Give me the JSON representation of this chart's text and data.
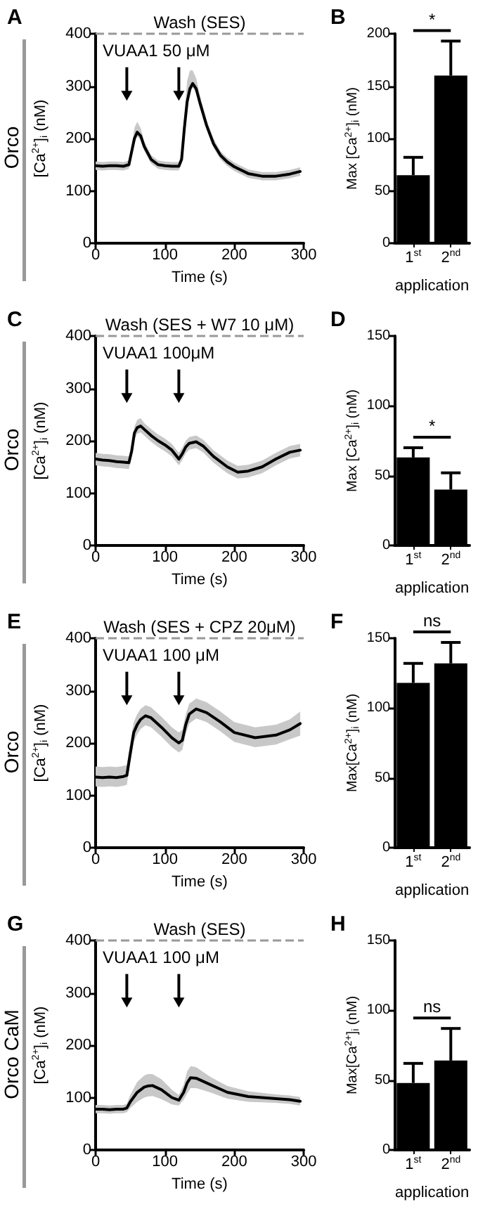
{
  "chart_data": [
    {
      "type": "line",
      "title": "A",
      "xlabel": "Time (s)",
      "ylabel": "[Ca$^{2+}$]$_{i}$ (nM)",
      "annotations": [
        "Orco",
        "VUAA1 50 μM"
      ],
      "marker": "none",
      "x": [
        0,
        10,
        20,
        30,
        40,
        48,
        52,
        56,
        60,
        65,
        70,
        80,
        90,
        100,
        110,
        120,
        124,
        128,
        132,
        136,
        140,
        145,
        150,
        160,
        170,
        180,
        190,
        200,
        220,
        240,
        260,
        280,
        295
      ],
      "series": [
        {
          "color": "#000000",
          "values": [
            148,
            147,
            148,
            148,
            147,
            150,
            175,
            200,
            212,
            205,
            185,
            160,
            150,
            148,
            147,
            147,
            160,
            220,
            270,
            295,
            305,
            295,
            270,
            225,
            190,
            168,
            155,
            146,
            133,
            128,
            128,
            132,
            137
          ],
          "upper": [
            156,
            155,
            156,
            156,
            155,
            158,
            185,
            220,
            232,
            220,
            195,
            168,
            158,
            156,
            155,
            155,
            170,
            245,
            310,
            330,
            330,
            315,
            285,
            235,
            200,
            176,
            163,
            154,
            141,
            136,
            136,
            140,
            145
          ],
          "lower": [
            140,
            139,
            140,
            140,
            139,
            142,
            167,
            192,
            204,
            197,
            177,
            152,
            142,
            140,
            139,
            139,
            152,
            212,
            262,
            287,
            297,
            287,
            262,
            217,
            182,
            160,
            147,
            138,
            125,
            120,
            120,
            124,
            129
          ]
        }
      ],
      "ref_lines": [
        {
          "axis": "y",
          "value": 400,
          "label": "Wash (SES)",
          "color": "#999999",
          "line_style": "dashed"
        },
        {
          "axis": "x",
          "value": 45,
          "label": null,
          "color": "#000000"
        },
        {
          "axis": "x",
          "value": 120,
          "label": null,
          "color": "#000000"
        }
      ],
      "xlim": [
        0,
        300
      ],
      "xticks": [
        0,
        100,
        200,
        300
      ],
      "ylim": [
        0,
        400
      ],
      "yticks": [
        0,
        100,
        200,
        300,
        400
      ]
    },
    {
      "type": "bar",
      "title": "B",
      "categories": [
        "1$^{st}$",
        "2$^{nd}$"
      ],
      "xlabel": "application",
      "ylabel": "Max [Ca$^{2+}$]$_{i}$ (nM)",
      "annotations": [
        "*"
      ],
      "values": [
        65,
        160
      ],
      "color": "#000000",
      "errors": [
        [
          65,
          82
        ],
        [
          160,
          193
        ]
      ],
      "ylim": [
        0,
        200
      ],
      "yticks": [
        0,
        50,
        100,
        150,
        200
      ]
    },
    {
      "type": "line",
      "title": "C",
      "xlabel": "Time (s)",
      "ylabel": "[Ca$^{2+}$]$_{i}$ (nM)",
      "annotations": [
        "Orco",
        "VUAA1 100μM"
      ],
      "marker": "none",
      "x": [
        0,
        10,
        20,
        30,
        40,
        48,
        52,
        56,
        60,
        65,
        70,
        80,
        90,
        100,
        110,
        120,
        125,
        130,
        135,
        145,
        155,
        170,
        190,
        205,
        220,
        240,
        260,
        280,
        295
      ],
      "series": [
        {
          "color": "#000000",
          "values": [
            165,
            163,
            162,
            160,
            159,
            158,
            180,
            215,
            225,
            228,
            222,
            210,
            200,
            192,
            182,
            165,
            175,
            188,
            195,
            198,
            190,
            170,
            150,
            140,
            142,
            150,
            165,
            178,
            182
          ],
          "upper": [
            177,
            175,
            174,
            172,
            171,
            170,
            192,
            227,
            240,
            243,
            234,
            222,
            212,
            204,
            194,
            177,
            187,
            200,
            207,
            210,
            202,
            182,
            162,
            152,
            154,
            162,
            177,
            190,
            194
          ],
          "lower": [
            153,
            151,
            150,
            148,
            147,
            146,
            168,
            203,
            213,
            216,
            210,
            198,
            188,
            180,
            170,
            153,
            163,
            176,
            183,
            186,
            178,
            158,
            138,
            128,
            130,
            138,
            153,
            166,
            170
          ]
        }
      ],
      "ref_lines": [
        {
          "axis": "y",
          "value": 400,
          "label": "Wash (SES + W7 10 μM)",
          "color": "#999999",
          "line_style": "dashed"
        },
        {
          "axis": "x",
          "value": 45,
          "label": null,
          "color": "#000000"
        },
        {
          "axis": "x",
          "value": 120,
          "label": null,
          "color": "#000000"
        }
      ],
      "xlim": [
        0,
        300
      ],
      "xticks": [
        0,
        100,
        200,
        300
      ],
      "ylim": [
        0,
        400
      ],
      "yticks": [
        0,
        100,
        200,
        300,
        400
      ]
    },
    {
      "type": "bar",
      "title": "D",
      "categories": [
        "1$^{st}$",
        "2$^{nd}$"
      ],
      "xlabel": "application",
      "ylabel": "Max [Ca$^{2+}$]$_{i}$ (nM)",
      "annotations": [
        "*"
      ],
      "values": [
        63,
        40
      ],
      "color": "#000000",
      "errors": [
        [
          63,
          70
        ],
        [
          40,
          52
        ]
      ],
      "ylim": [
        0,
        150
      ],
      "yticks": [
        0,
        50,
        100,
        150
      ]
    },
    {
      "type": "line",
      "title": "E",
      "xlabel": "Time (s)",
      "ylabel": "[Ca$^{2+}$]$_{i}$ (nM)",
      "annotations": [
        "Orco",
        "VUAA1 100 μM"
      ],
      "marker": "none",
      "x": [
        0,
        10,
        20,
        30,
        40,
        45,
        50,
        55,
        60,
        65,
        72,
        80,
        95,
        110,
        120,
        125,
        130,
        135,
        145,
        160,
        180,
        200,
        230,
        260,
        280,
        295
      ],
      "series": [
        {
          "color": "#000000",
          "values": [
            135,
            134,
            135,
            134,
            136,
            138,
            180,
            220,
            235,
            245,
            252,
            248,
            230,
            210,
            200,
            205,
            235,
            255,
            265,
            258,
            240,
            220,
            210,
            215,
            225,
            237
          ],
          "upper": [
            155,
            154,
            155,
            154,
            156,
            158,
            200,
            240,
            255,
            265,
            272,
            268,
            250,
            230,
            220,
            225,
            255,
            275,
            285,
            278,
            260,
            240,
            230,
            235,
            245,
            260
          ],
          "lower": [
            117,
            116,
            117,
            116,
            118,
            120,
            162,
            202,
            217,
            227,
            234,
            230,
            212,
            192,
            182,
            187,
            217,
            237,
            247,
            240,
            222,
            202,
            192,
            197,
            207,
            214
          ]
        }
      ],
      "ref_lines": [
        {
          "axis": "y",
          "value": 400,
          "label": "Wash (SES + CPZ 20μM)",
          "color": "#999999",
          "line_style": "dashed"
        },
        {
          "axis": "x",
          "value": 45,
          "label": null,
          "color": "#000000"
        },
        {
          "axis": "x",
          "value": 120,
          "label": null,
          "color": "#000000"
        }
      ],
      "xlim": [
        0,
        300
      ],
      "xticks": [
        0,
        100,
        200,
        300
      ],
      "ylim": [
        0,
        400
      ],
      "yticks": [
        0,
        100,
        200,
        300,
        400
      ]
    },
    {
      "type": "bar",
      "title": "F",
      "categories": [
        "1$^{st}$",
        "2$^{nd}$"
      ],
      "xlabel": "application",
      "ylabel": "Max[Ca$^{2+}$]$_{i}$ (nM)",
      "annotations": [
        "ns"
      ],
      "values": [
        118,
        132
      ],
      "color": "#000000",
      "errors": [
        [
          118,
          132
        ],
        [
          132,
          147
        ]
      ],
      "ylim": [
        0,
        150
      ],
      "yticks": [
        0,
        50,
        100,
        150
      ]
    },
    {
      "type": "line",
      "title": "G",
      "xlabel": "Time (s)",
      "ylabel": "[Ca$^{2+}$]$_{i}$ (nM)",
      "annotations": [
        "Orco CaM",
        "VUAA1 100 μM"
      ],
      "marker": "none",
      "x": [
        0,
        10,
        20,
        30,
        40,
        45,
        50,
        60,
        70,
        75,
        82,
        95,
        110,
        120,
        127,
        132,
        137,
        145,
        165,
        190,
        220,
        260,
        280,
        295
      ],
      "series": [
        {
          "color": "#000000",
          "values": [
            78,
            78,
            77,
            78,
            78,
            80,
            92,
            110,
            120,
            122,
            123,
            115,
            100,
            95,
            110,
            128,
            138,
            137,
            125,
            110,
            102,
            98,
            96,
            93
          ],
          "upper": [
            86,
            86,
            85,
            86,
            86,
            88,
            105,
            130,
            142,
            145,
            145,
            135,
            115,
            105,
            125,
            150,
            160,
            158,
            140,
            122,
            112,
            106,
            104,
            101
          ],
          "lower": [
            70,
            70,
            69,
            70,
            70,
            72,
            80,
            92,
            100,
            102,
            103,
            97,
            87,
            85,
            96,
            108,
            118,
            118,
            110,
            98,
            92,
            90,
            88,
            85
          ]
        }
      ],
      "ref_lines": [
        {
          "axis": "y",
          "value": 400,
          "label": "Wash (SES)",
          "color": "#999999",
          "line_style": "dashed"
        },
        {
          "axis": "x",
          "value": 45,
          "label": null,
          "color": "#000000"
        },
        {
          "axis": "x",
          "value": 120,
          "label": null,
          "color": "#000000"
        }
      ],
      "xlim": [
        0,
        300
      ],
      "xticks": [
        0,
        100,
        200,
        300
      ],
      "ylim": [
        0,
        400
      ],
      "yticks": [
        0,
        100,
        200,
        300,
        400
      ]
    },
    {
      "type": "bar",
      "title": "H",
      "categories": [
        "1$^{st}$",
        "2$^{nd}$"
      ],
      "xlabel": "application",
      "ylabel": "Max[Ca$^{2+}$]$_{i}$ (nM)",
      "annotations": [
        "ns"
      ],
      "values": [
        48,
        64
      ],
      "color": "#000000",
      "errors": [
        [
          48,
          62
        ],
        [
          64,
          87
        ]
      ],
      "ylim": [
        0,
        150
      ],
      "yticks": [
        0,
        50,
        100,
        150
      ]
    }
  ]
}
